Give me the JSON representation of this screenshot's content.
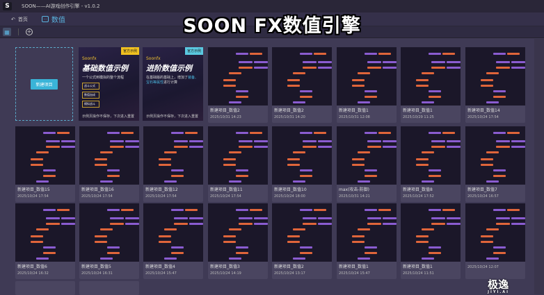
{
  "app": {
    "title": "SOON——AI游戏创作引擎 - v1.0.2",
    "logo": "S"
  },
  "tabs": {
    "home": "首页",
    "active": "数值"
  },
  "overlay_title": "SOON FX数值引擎",
  "new_project": "新建项目",
  "examples": [
    {
      "badge": "官方示例",
      "badge_color": "#f0c020",
      "brand": "Soonfx",
      "title": "基础数值示例",
      "desc": "一个公式到模拟的整个流程",
      "pills": [
        "战斗公式",
        "数值加成",
        "模拟战斗"
      ],
      "foot": "示例页操作不保存，下次进入重置"
    },
    {
      "badge": "官方示例",
      "badge_color": "#5ac8e0",
      "brand": "Soonfx",
      "title": "进阶数值示例",
      "desc_pre": "在基础版的基础上，增加了",
      "desc_hl": "装备、宝石等属性",
      "desc_post": "进行计算",
      "foot": "示例页操作不保存，下次进入重置"
    }
  ],
  "projects": [
    {
      "name": "新建项目_数值2",
      "date": "2025/10/31 14:23"
    },
    {
      "name": "新建项目_数值2",
      "date": "2025/10/31 14:20"
    },
    {
      "name": "新建项目_数值1",
      "date": "2025/10/31 12:08"
    },
    {
      "name": "新建项目_数值1",
      "date": "2025/10/29 11:25"
    },
    {
      "name": "新建项目_数值14",
      "date": "2025/10/24 17:54"
    },
    {
      "name": "新建项目_数值15",
      "date": "2025/10/24 17:54"
    },
    {
      "name": "新建项目_数值16",
      "date": "2025/10/24 17:54"
    },
    {
      "name": "新建项目_数值12",
      "date": "2025/10/24 17:54"
    },
    {
      "name": "新建项目_数值11",
      "date": "2025/10/24 17:54"
    },
    {
      "name": "新建项目_数值10",
      "date": "2025/10/24 18:00"
    },
    {
      "name": "max(攻击-防御)",
      "date": "2025/10/31 14:21"
    },
    {
      "name": "新建项目_数值8",
      "date": "2025/10/24 17:52"
    },
    {
      "name": "新建项目_数值7",
      "date": "2025/10/24 16:57"
    },
    {
      "name": "新建项目_数值6",
      "date": "2025/10/24 16:32"
    },
    {
      "name": "新建项目_数值5",
      "date": "2025/10/24 16:31"
    },
    {
      "name": "新建项目_数值4",
      "date": "2025/10/24 15:47"
    },
    {
      "name": "新建项目_数值3",
      "date": "2025/10/24 14:19"
    },
    {
      "name": "新建项目_数值2",
      "date": "2025/10/24 13:17"
    },
    {
      "name": "新建项目_数值1",
      "date": "2025/10/24 15:47"
    },
    {
      "name": "新建项目_数值1",
      "date": "2025/10/24 11:51"
    },
    {
      "name": "",
      "date": "2025/10/24 12:07"
    }
  ],
  "watermark": {
    "text": "极逸",
    "sub": "JIYI.AI"
  }
}
